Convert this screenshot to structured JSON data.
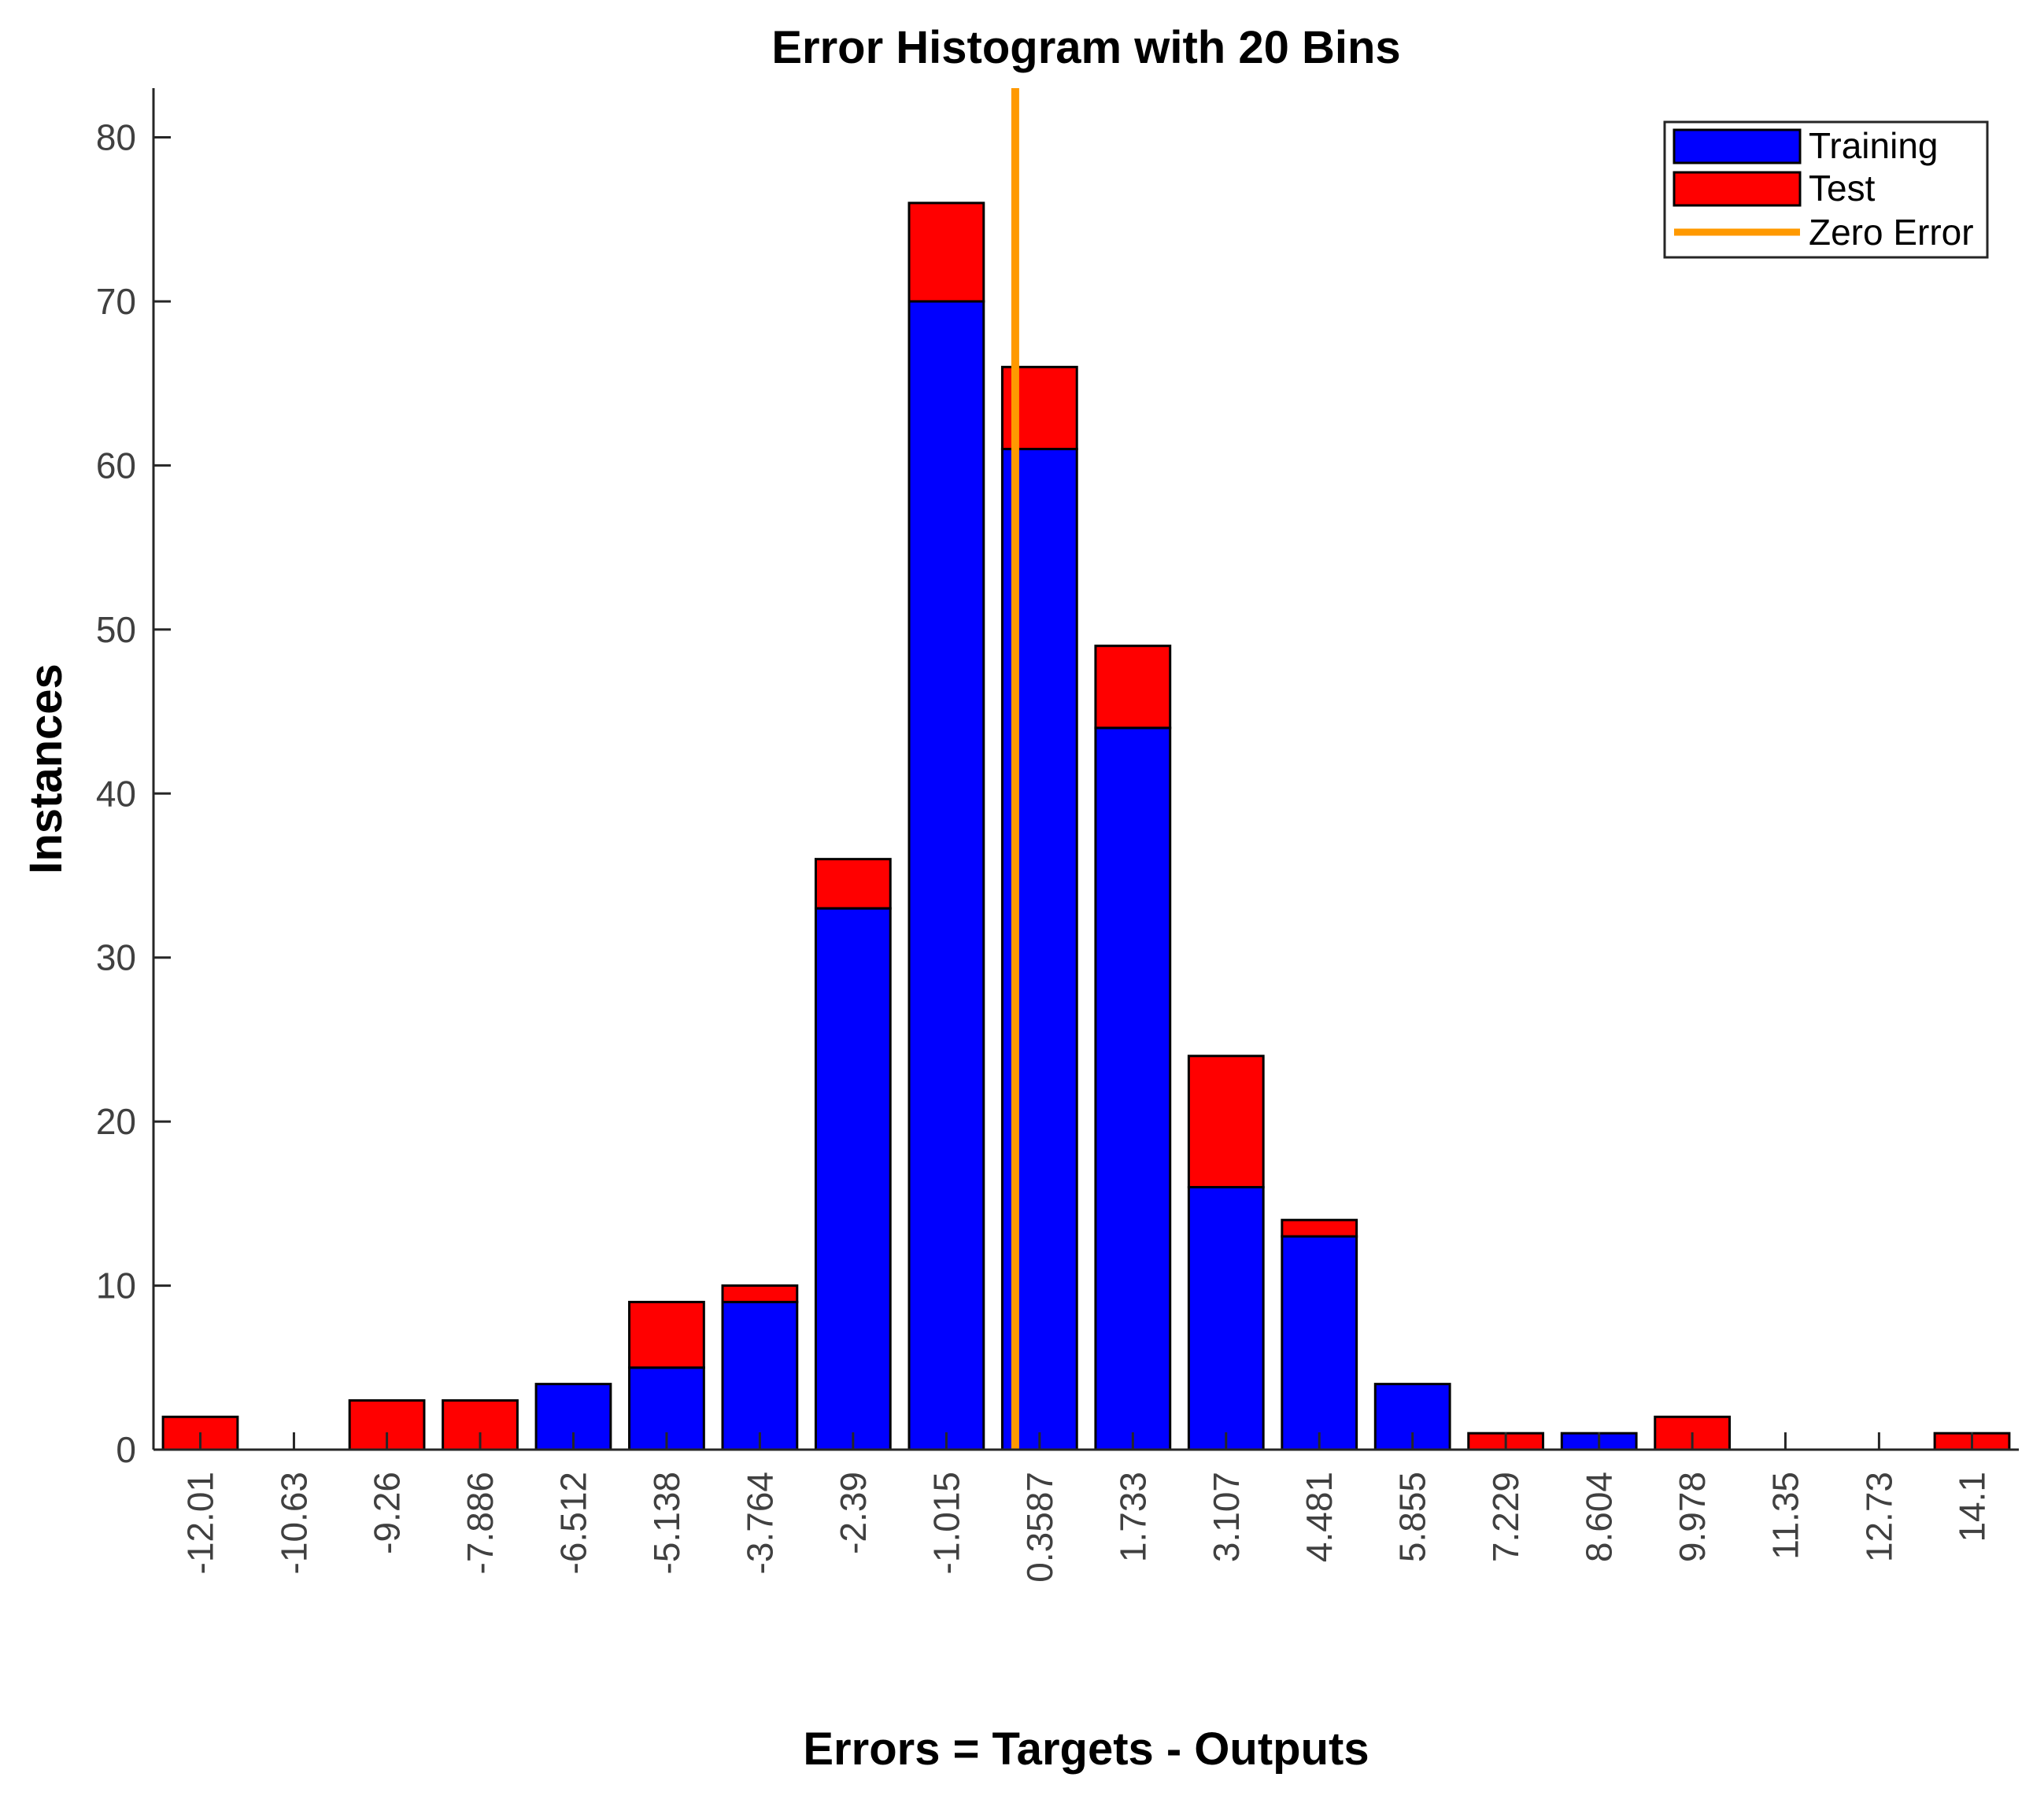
{
  "chart_data": {
    "type": "bar",
    "stacked": true,
    "title": "Error Histogram with 20 Bins",
    "xlabel": "Errors = Targets - Outputs",
    "ylabel": "Instances",
    "categories": [
      "-12.01",
      "-10.63",
      "-9.26",
      "-7.886",
      "-6.512",
      "-5.138",
      "-3.764",
      "-2.39",
      "-1.015",
      "0.3587",
      "1.733",
      "3.107",
      "4.481",
      "5.855",
      "7.229",
      "8.604",
      "9.978",
      "11.35",
      "12.73",
      "14.1"
    ],
    "series": [
      {
        "name": "Training",
        "color": "#0000ff",
        "values": [
          0,
          0,
          0,
          0,
          4,
          5,
          9,
          33,
          70,
          61,
          44,
          16,
          13,
          4,
          0,
          1,
          0,
          0,
          0,
          0
        ]
      },
      {
        "name": "Test",
        "color": "#ff0000",
        "values": [
          2,
          0,
          3,
          3,
          0,
          4,
          1,
          3,
          6,
          5,
          5,
          8,
          1,
          0,
          1,
          0,
          2,
          0,
          0,
          1
        ]
      }
    ],
    "reference_line": {
      "name": "Zero Error",
      "color": "#ff9900",
      "x": 0
    },
    "ylim": [
      0,
      83
    ],
    "yticks": [
      0,
      10,
      20,
      30,
      40,
      50,
      60,
      70,
      80
    ],
    "xlim": [
      -12.7,
      14.79
    ],
    "grid": false,
    "legend_position": "top-right"
  }
}
